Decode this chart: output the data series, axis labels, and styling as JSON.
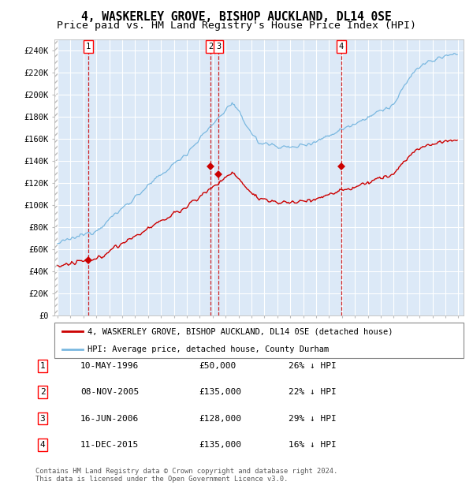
{
  "title1": "4, WASKERLEY GROVE, BISHOP AUCKLAND, DL14 0SE",
  "title2": "Price paid vs. HM Land Registry's House Price Index (HPI)",
  "ylim": [
    0,
    250000
  ],
  "yticks": [
    0,
    20000,
    40000,
    60000,
    80000,
    100000,
    120000,
    140000,
    160000,
    180000,
    200000,
    220000,
    240000
  ],
  "background_color": "#dce9f7",
  "grid_color": "#ffffff",
  "hpi_color": "#7ab8e0",
  "price_color": "#cc0000",
  "dashed_color": "#cc0000",
  "sale_dates_num": [
    1996.37,
    2005.85,
    2006.46,
    2015.95
  ],
  "sale_prices": [
    50000,
    135000,
    128000,
    135000
  ],
  "sale_labels": [
    "1",
    "2",
    "3",
    "4"
  ],
  "legend_line1": "4, WASKERLEY GROVE, BISHOP AUCKLAND, DL14 0SE (detached house)",
  "legend_line2": "HPI: Average price, detached house, County Durham",
  "table_rows": [
    [
      "1",
      "10-MAY-1996",
      "£50,000",
      "26% ↓ HPI"
    ],
    [
      "2",
      "08-NOV-2005",
      "£135,000",
      "22% ↓ HPI"
    ],
    [
      "3",
      "16-JUN-2006",
      "£128,000",
      "29% ↓ HPI"
    ],
    [
      "4",
      "11-DEC-2015",
      "£135,000",
      "16% ↓ HPI"
    ]
  ],
  "footer": "Contains HM Land Registry data © Crown copyright and database right 2024.\nThis data is licensed under the Open Government Licence v3.0."
}
